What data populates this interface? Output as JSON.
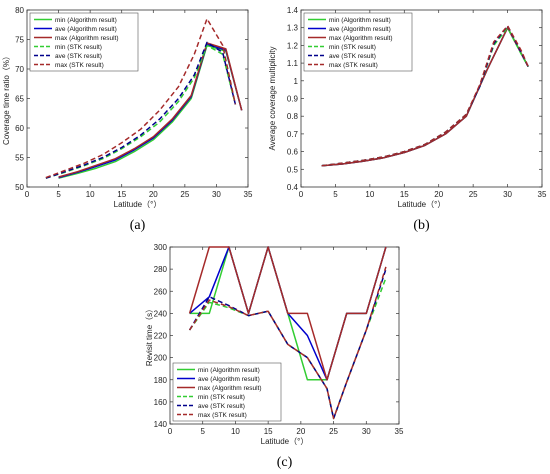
{
  "chart_data": [
    {
      "type": "line",
      "panel_label": "(a)",
      "xlabel": "Latitude（°）",
      "ylabel": "Coverage time ratio（%）",
      "xlim": [
        0,
        35
      ],
      "ylim": [
        50,
        80
      ],
      "xticks": [
        0,
        5,
        10,
        15,
        20,
        25,
        30,
        35
      ],
      "yticks": [
        50,
        55,
        60,
        65,
        70,
        75,
        80
      ],
      "legend_position": "top-left",
      "series": [
        {
          "name": "min (Algorithm result)",
          "color": "#32cd32",
          "style": "solid",
          "x": [
            5,
            8,
            11,
            14,
            17,
            20,
            23,
            26,
            28.5,
            31.5,
            34
          ],
          "y": [
            51.5,
            52.3,
            53.2,
            54.3,
            56.0,
            58.0,
            61.0,
            65.0,
            74.0,
            73.0,
            63.0
          ]
        },
        {
          "name": "ave (Algorithm result)",
          "color": "#0000cd",
          "style": "solid",
          "x": [
            5,
            8,
            11,
            14,
            17,
            20,
            23,
            26,
            28.5,
            31.5,
            34
          ],
          "y": [
            51.6,
            52.5,
            53.5,
            54.6,
            56.3,
            58.3,
            61.3,
            65.3,
            74.2,
            73.2,
            63.0
          ]
        },
        {
          "name": "max (Algorithm result)",
          "color": "#a52a2a",
          "style": "solid",
          "x": [
            5,
            8,
            11,
            14,
            17,
            20,
            23,
            26,
            28.5,
            31.5,
            34
          ],
          "y": [
            51.7,
            52.6,
            53.7,
            54.8,
            56.5,
            58.5,
            61.5,
            65.5,
            74.4,
            73.4,
            63.0
          ]
        },
        {
          "name": "min (STK result)",
          "color": "#32cd32",
          "style": "dashed",
          "x": [
            3,
            6,
            9,
            12,
            15,
            18,
            21,
            24,
            26.5,
            28.5,
            31,
            33
          ],
          "y": [
            51.5,
            52.5,
            53.6,
            54.8,
            56.5,
            58.5,
            61.0,
            64.5,
            68.5,
            74.0,
            72.5,
            64.0
          ]
        },
        {
          "name": "ave (STK result)",
          "color": "#00008b",
          "style": "dashed",
          "x": [
            3,
            6,
            9,
            12,
            15,
            18,
            21,
            24,
            26.5,
            28.5,
            31,
            33
          ],
          "y": [
            51.5,
            52.6,
            53.7,
            55.0,
            56.7,
            58.8,
            61.5,
            65.0,
            69.0,
            74.5,
            72.8,
            64.0
          ]
        },
        {
          "name": "max (STK result)",
          "color": "#a52a2a",
          "style": "dashed",
          "x": [
            3,
            6,
            9,
            12,
            15,
            18,
            21,
            24,
            26.5,
            28.5,
            31,
            33
          ],
          "y": [
            51.6,
            52.8,
            54.0,
            55.5,
            57.5,
            59.8,
            63.0,
            67.0,
            72.5,
            78.5,
            74.0,
            64.0
          ]
        }
      ]
    },
    {
      "type": "line",
      "panel_label": "(b)",
      "xlabel": "Latitude（°）",
      "ylabel": "Average coverage multiplicity",
      "xlim": [
        0,
        35
      ],
      "ylim": [
        0.4,
        1.4
      ],
      "xticks": [
        0,
        5,
        10,
        15,
        20,
        25,
        30,
        35
      ],
      "yticks": [
        0.4,
        0.5,
        0.6,
        0.7,
        0.8,
        0.9,
        1,
        1.1,
        1.2,
        1.3,
        1.4
      ],
      "legend_position": "top-left",
      "series": [
        {
          "name": "min (Algorithm result)",
          "color": "#32cd32",
          "style": "solid",
          "x": [
            3,
            6,
            9,
            12,
            15,
            18,
            21,
            24,
            27,
            30,
            33
          ],
          "y": [
            0.52,
            0.53,
            0.545,
            0.565,
            0.595,
            0.635,
            0.7,
            0.8,
            1.06,
            1.3,
            1.08
          ]
        },
        {
          "name": "ave (Algorithm result)",
          "color": "#0000cd",
          "style": "solid",
          "x": [
            3,
            6,
            9,
            12,
            15,
            18,
            21,
            24,
            27,
            30,
            33
          ],
          "y": [
            0.52,
            0.53,
            0.545,
            0.565,
            0.595,
            0.635,
            0.7,
            0.8,
            1.06,
            1.3,
            1.08
          ]
        },
        {
          "name": "max (Algorithm result)",
          "color": "#a52a2a",
          "style": "solid",
          "x": [
            3,
            6,
            9,
            12,
            15,
            18,
            21,
            24,
            27,
            30,
            33
          ],
          "y": [
            0.52,
            0.53,
            0.545,
            0.565,
            0.595,
            0.635,
            0.7,
            0.8,
            1.06,
            1.3,
            1.08
          ]
        },
        {
          "name": "min (STK result)",
          "color": "#32cd32",
          "style": "dashed",
          "x": [
            3,
            6,
            9,
            12,
            15,
            18,
            21,
            24,
            26,
            28,
            30,
            32,
            33
          ],
          "y": [
            0.52,
            0.535,
            0.55,
            0.57,
            0.6,
            0.64,
            0.71,
            0.81,
            0.97,
            1.2,
            1.3,
            1.15,
            1.08
          ]
        },
        {
          "name": "ave (STK result)",
          "color": "#00008b",
          "style": "dashed",
          "x": [
            3,
            6,
            9,
            12,
            15,
            18,
            21,
            24,
            26,
            28,
            30,
            32,
            33
          ],
          "y": [
            0.52,
            0.535,
            0.55,
            0.57,
            0.6,
            0.64,
            0.71,
            0.81,
            0.97,
            1.21,
            1.31,
            1.16,
            1.08
          ]
        },
        {
          "name": "max (STK result)",
          "color": "#a52a2a",
          "style": "dashed",
          "x": [
            3,
            6,
            9,
            12,
            15,
            18,
            21,
            24,
            26,
            28,
            30,
            32,
            33
          ],
          "y": [
            0.52,
            0.535,
            0.55,
            0.57,
            0.6,
            0.64,
            0.71,
            0.81,
            0.98,
            1.22,
            1.31,
            1.17,
            1.08
          ]
        }
      ]
    },
    {
      "type": "line",
      "panel_label": "(c)",
      "xlabel": "Latitude（°）",
      "ylabel": "Revisit time（s）",
      "xlim": [
        0,
        35
      ],
      "ylim": [
        140,
        300
      ],
      "xticks": [
        0,
        5,
        10,
        15,
        20,
        25,
        30,
        35
      ],
      "yticks": [
        140,
        160,
        180,
        200,
        220,
        240,
        260,
        280,
        300
      ],
      "legend_position": "bottom-left",
      "series": [
        {
          "name": "min (Algorithm result)",
          "color": "#32cd32",
          "style": "solid",
          "x": [
            3,
            6,
            9,
            12,
            15,
            18,
            21,
            24,
            27,
            30,
            33
          ],
          "y": [
            240,
            240,
            300,
            240,
            300,
            240,
            180,
            180,
            240,
            240,
            300
          ]
        },
        {
          "name": "ave (Algorithm result)",
          "color": "#0000cd",
          "style": "solid",
          "x": [
            3,
            6,
            9,
            12,
            15,
            18,
            21,
            24,
            27,
            30,
            33
          ],
          "y": [
            240,
            255,
            300,
            240,
            300,
            240,
            220,
            180,
            240,
            240,
            300
          ]
        },
        {
          "name": "max (Algorithm result)",
          "color": "#a52a2a",
          "style": "solid",
          "x": [
            3,
            6,
            9,
            12,
            15,
            18,
            21,
            24,
            27,
            30,
            33
          ],
          "y": [
            240,
            300,
            300,
            240,
            300,
            240,
            240,
            180,
            240,
            240,
            300
          ]
        },
        {
          "name": "min (STK result)",
          "color": "#32cd32",
          "style": "dashed",
          "x": [
            3,
            6,
            9,
            12,
            15,
            18,
            21,
            24,
            25,
            27,
            30,
            33
          ],
          "y": [
            225,
            250,
            245,
            238,
            242,
            212,
            200,
            172,
            145,
            178,
            225,
            272
          ]
        },
        {
          "name": "ave (STK result)",
          "color": "#00008b",
          "style": "dashed",
          "x": [
            3,
            6,
            9,
            12,
            15,
            18,
            21,
            24,
            25,
            27,
            30,
            33
          ],
          "y": [
            225,
            255,
            247,
            238,
            242,
            212,
            200,
            172,
            145,
            178,
            225,
            280
          ]
        },
        {
          "name": "max (STK result)",
          "color": "#a52a2a",
          "style": "dashed",
          "x": [
            3,
            6,
            9,
            12,
            15,
            18,
            21,
            24,
            25,
            27,
            30,
            33
          ],
          "y": [
            225,
            252,
            246,
            238,
            242,
            212,
            200,
            172,
            145,
            178,
            225,
            282
          ]
        }
      ]
    }
  ]
}
